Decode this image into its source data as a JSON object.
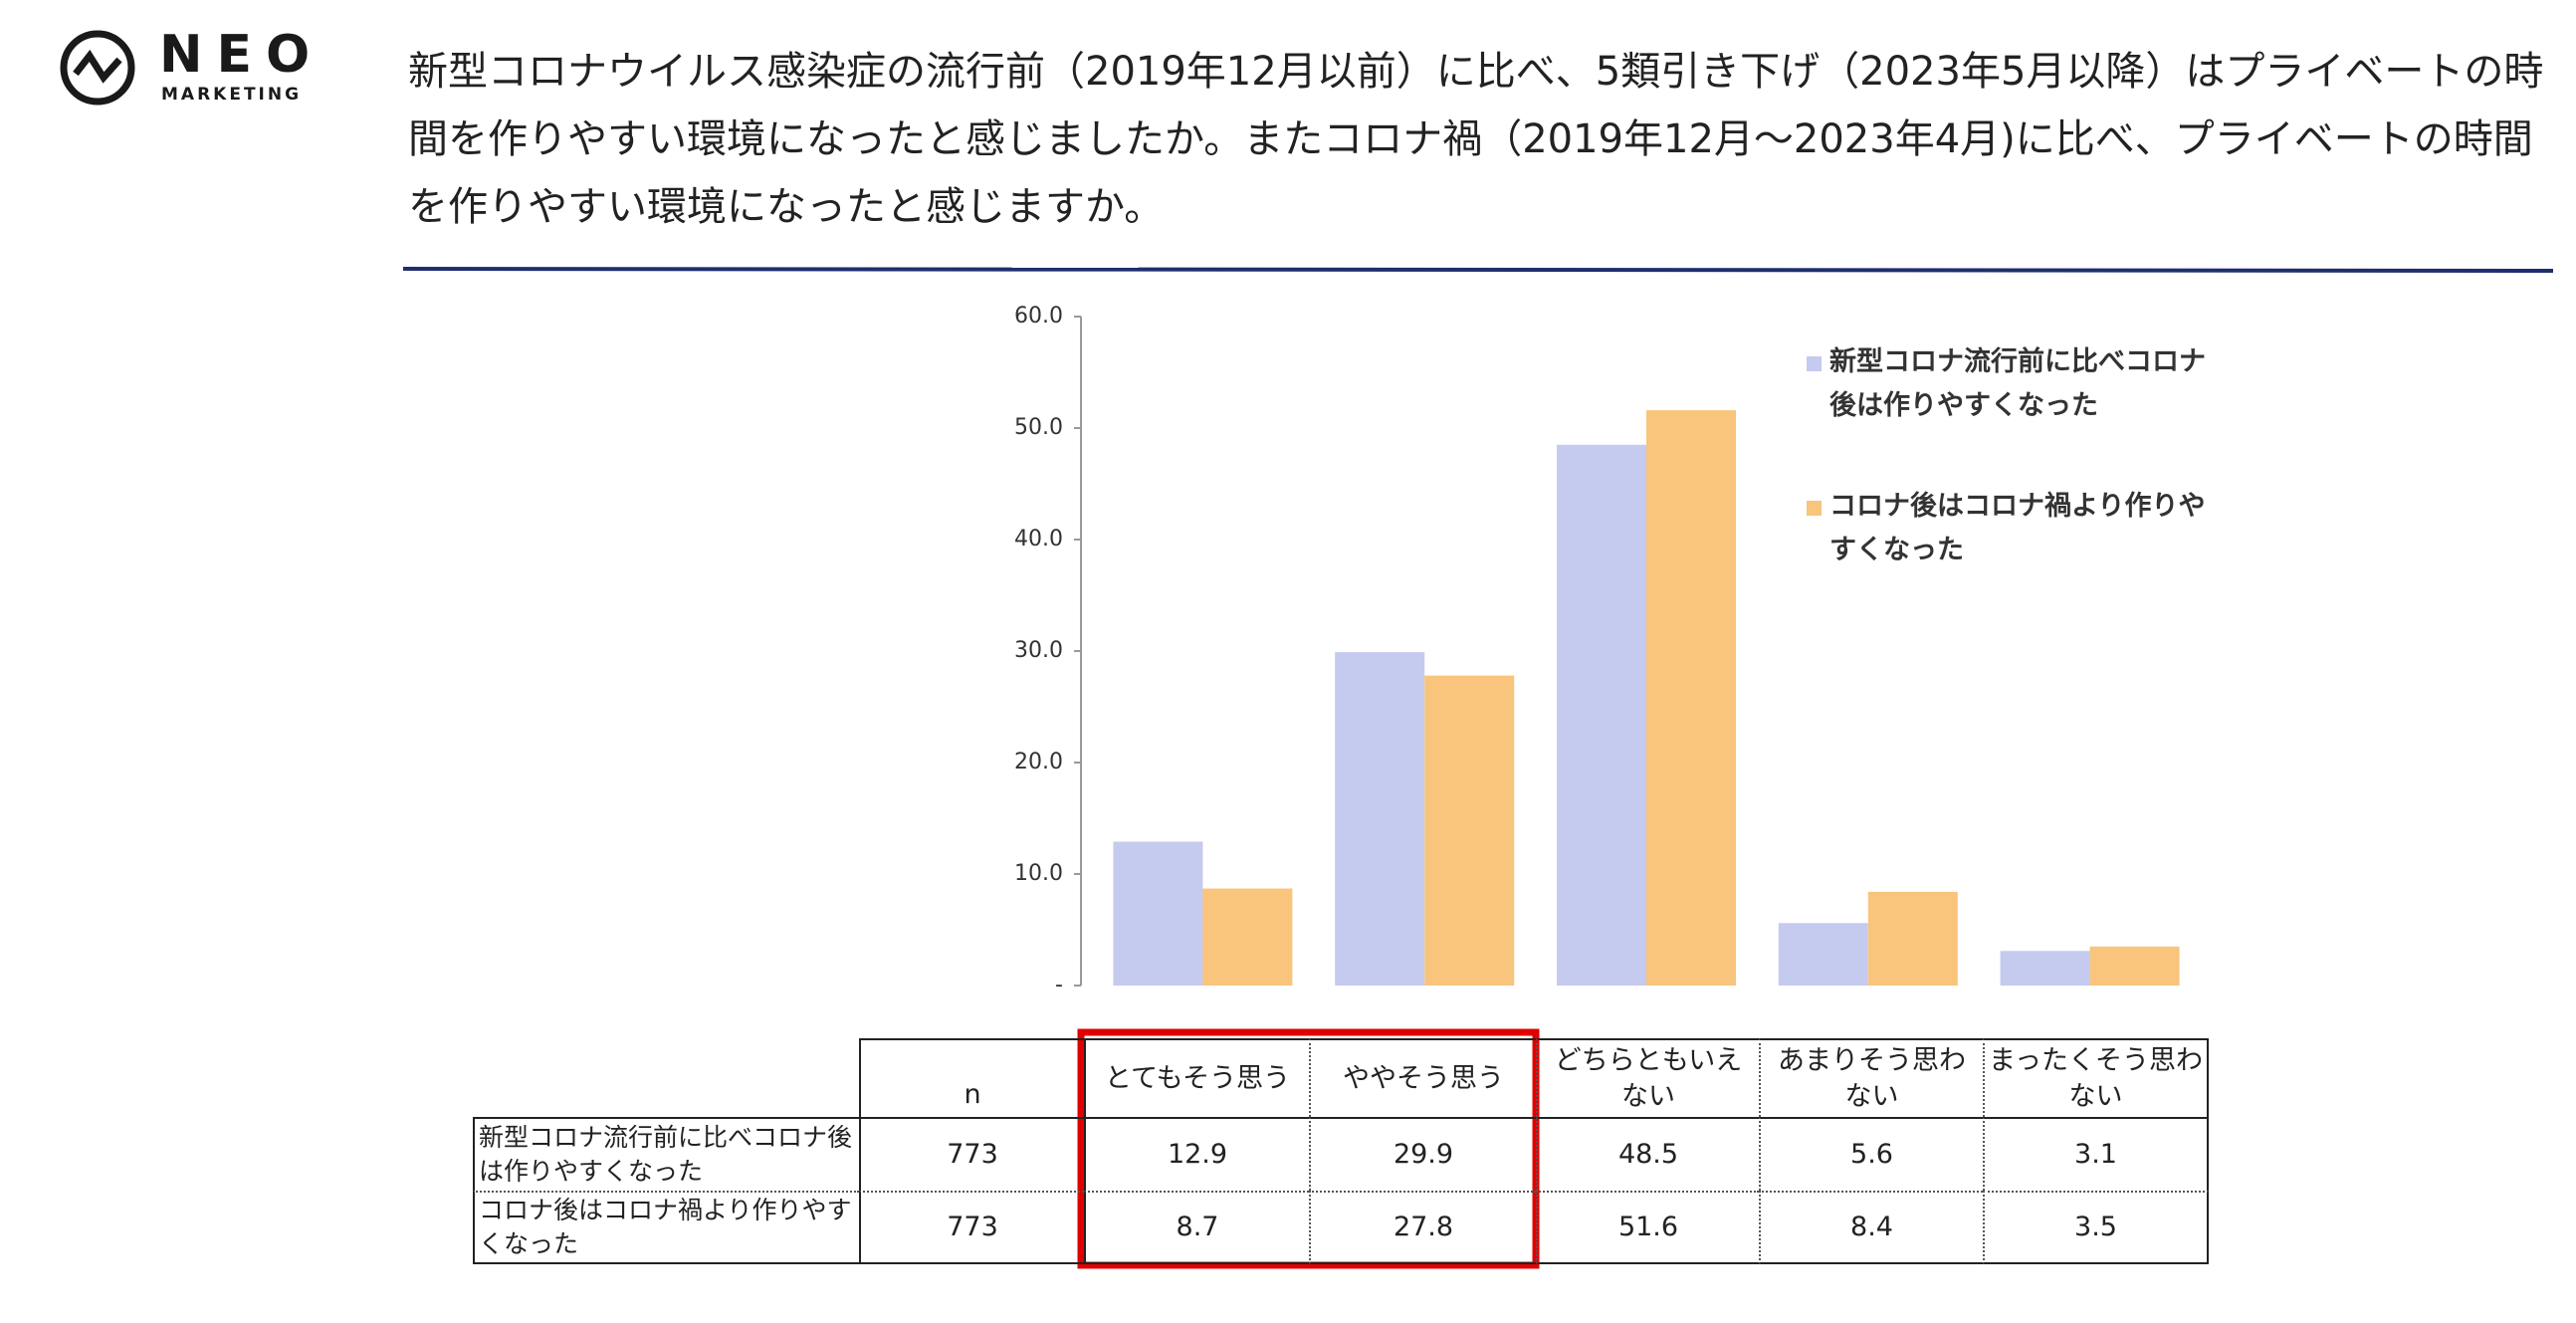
{
  "logo": {
    "name": "NEO",
    "tagline": "MARKETING"
  },
  "question": "新型コロナウイルス感染症の流行前（2019年12月以前）に比べ、5類引き下げ（2023年5月以降）はプライベートの時間を作りやすい環境になったと感じましたか。またコロナ禍（2019年12月～2023年4月)に比べ、プライベートの時間を作りやすい環境になったと感じますか。",
  "chart_data": {
    "type": "bar",
    "categories": [
      "とてもそう思う",
      "ややそう思う",
      "どちらともいえない",
      "あまりそう思わない",
      "まったくそう思わない"
    ],
    "series": [
      {
        "name": "新型コロナ流行前に比べコロナ後は作りやすくなった",
        "color": "#c5caef",
        "values": [
          12.9,
          29.9,
          48.5,
          5.6,
          3.1
        ]
      },
      {
        "name": "コロナ後はコロナ禍より作りやすくなった",
        "color": "#f9c47c",
        "values": [
          8.7,
          27.8,
          51.6,
          8.4,
          3.5
        ]
      }
    ],
    "ylim": [
      0,
      60
    ],
    "yticks": [
      {
        "value": 0,
        "label": "-"
      },
      {
        "value": 10,
        "label": "10.0"
      },
      {
        "value": 20,
        "label": "20.0"
      },
      {
        "value": 30,
        "label": "30.0"
      },
      {
        "value": 40,
        "label": "40.0"
      },
      {
        "value": 50,
        "label": "50.0"
      },
      {
        "value": 60,
        "label": "60.0"
      }
    ],
    "legend": "upper right"
  },
  "table": {
    "n_header": "n",
    "n": [
      773,
      773
    ]
  }
}
